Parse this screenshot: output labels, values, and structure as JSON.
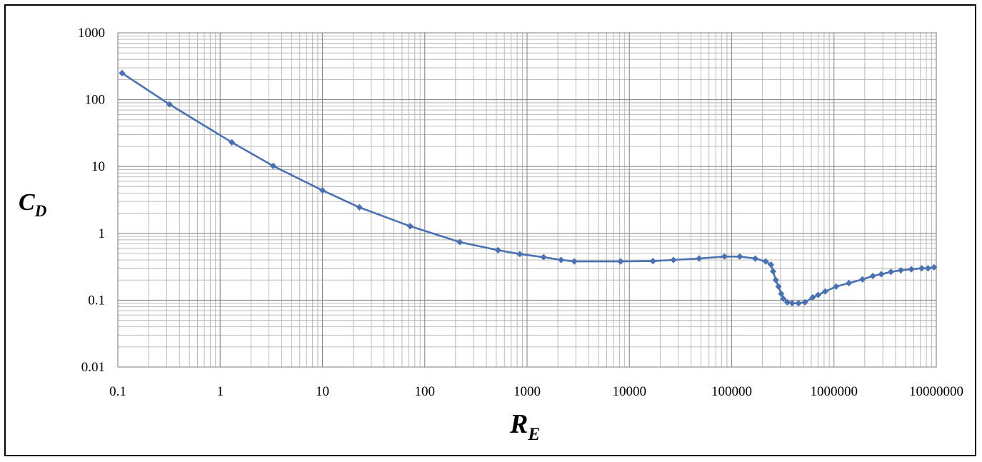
{
  "chart_data": {
    "type": "line",
    "xscale": "log",
    "yscale": "log",
    "xlim": [
      0.1,
      10000000
    ],
    "ylim": [
      0.01,
      1000
    ],
    "grid": true,
    "grid_minor": true,
    "x_tick_labels": [
      "0.1",
      "1",
      "10",
      "100",
      "1000",
      "10000",
      "100000",
      "1000000",
      "10000000"
    ],
    "y_tick_labels": [
      "0.01",
      "0.1",
      "1",
      "10",
      "100",
      "1000"
    ],
    "xlabel": {
      "main": "R",
      "sub": "E"
    },
    "ylabel": {
      "main": "C",
      "sub": "D"
    },
    "series": [
      {
        "color": "#4a72b0",
        "marker": "diamond",
        "x": [
          0.11,
          0.32,
          1.3,
          3.3,
          10,
          23,
          72,
          220,
          520,
          850,
          1450,
          2150,
          2900,
          8200,
          17000,
          27000,
          48000,
          85000,
          120000,
          170000,
          215000,
          242000,
          254000,
          270000,
          287000,
          305000,
          320000,
          350000,
          390000,
          450000,
          520000,
          620000,
          700000,
          820000,
          1050000,
          1400000,
          1900000,
          2400000,
          2900000,
          3600000,
          4500000,
          5700000,
          7200000,
          8300000,
          9500000
        ],
        "y": [
          250,
          85,
          23,
          10.2,
          4.4,
          2.45,
          1.28,
          0.74,
          0.56,
          0.49,
          0.44,
          0.4,
          0.38,
          0.38,
          0.385,
          0.4,
          0.42,
          0.45,
          0.45,
          0.42,
          0.38,
          0.34,
          0.27,
          0.2,
          0.16,
          0.125,
          0.105,
          0.093,
          0.09,
          0.09,
          0.093,
          0.11,
          0.12,
          0.135,
          0.16,
          0.18,
          0.205,
          0.23,
          0.245,
          0.265,
          0.28,
          0.29,
          0.3,
          0.3,
          0.31
        ]
      }
    ]
  }
}
